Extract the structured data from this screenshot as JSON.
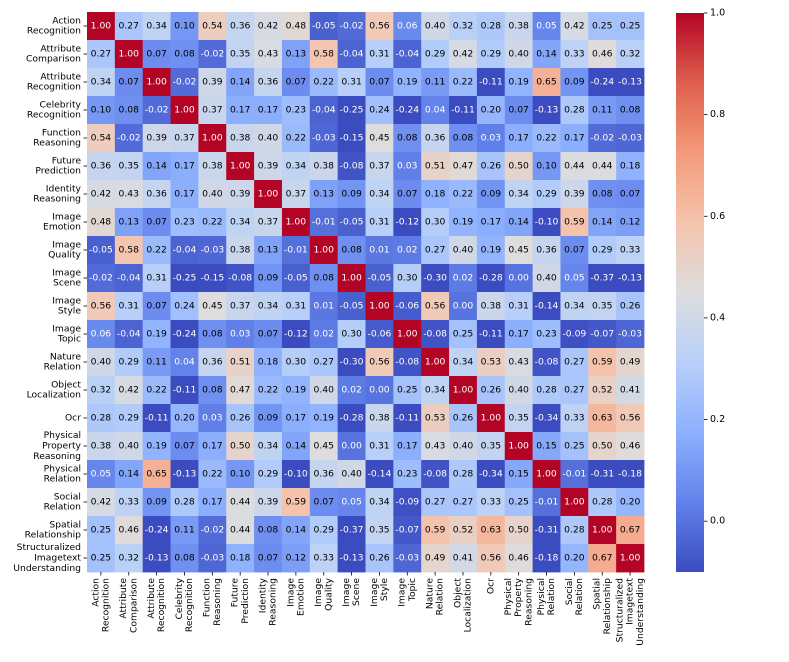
{
  "chart_data": {
    "type": "heatmap",
    "title": "",
    "xlabel": "",
    "ylabel": "",
    "row_labels": [
      [
        "Action",
        "Recognition"
      ],
      [
        "Attribute",
        "Comparison"
      ],
      [
        "Attribute",
        "Recognition"
      ],
      [
        "Celebrity",
        "Recognition"
      ],
      [
        "Function",
        "Reasoning"
      ],
      [
        "Future",
        "Prediction"
      ],
      [
        "Identity",
        "Reasoning"
      ],
      [
        "Image",
        "Emotion"
      ],
      [
        "Image",
        "Quality"
      ],
      [
        "Image",
        "Scene"
      ],
      [
        "Image",
        "Style"
      ],
      [
        "Image",
        "Topic"
      ],
      [
        "Nature",
        "Relation"
      ],
      [
        "Object",
        "Localization"
      ],
      [
        "Ocr"
      ],
      [
        "Physical",
        "Property",
        "Reasoning"
      ],
      [
        "Physical",
        "Relation"
      ],
      [
        "Social",
        "Relation"
      ],
      [
        "Spatial",
        "Relationship"
      ],
      [
        "Structuralized",
        "Imagetext",
        "Understanding"
      ]
    ],
    "values": [
      [
        1.0,
        0.27,
        0.34,
        0.1,
        0.54,
        0.36,
        0.42,
        0.48,
        -0.05,
        -0.02,
        0.56,
        0.06,
        0.4,
        0.32,
        0.28,
        0.38,
        0.05,
        0.42,
        0.25,
        0.25
      ],
      [
        0.27,
        1.0,
        0.07,
        0.08,
        -0.02,
        0.35,
        0.43,
        0.13,
        0.58,
        -0.04,
        0.31,
        -0.04,
        0.29,
        0.42,
        0.29,
        0.4,
        0.14,
        0.33,
        0.46,
        0.32
      ],
      [
        0.34,
        0.07,
        1.0,
        -0.02,
        0.39,
        0.14,
        0.36,
        0.07,
        0.22,
        0.31,
        0.07,
        0.19,
        0.11,
        0.22,
        -0.11,
        0.19,
        0.65,
        0.09,
        -0.24,
        -0.13
      ],
      [
        0.1,
        0.08,
        -0.02,
        1.0,
        0.37,
        0.17,
        0.17,
        0.23,
        -0.04,
        -0.25,
        0.24,
        -0.24,
        0.04,
        -0.11,
        0.2,
        0.07,
        -0.13,
        0.28,
        0.11,
        0.08
      ],
      [
        0.54,
        -0.02,
        0.39,
        0.37,
        1.0,
        0.38,
        0.4,
        0.22,
        -0.03,
        -0.15,
        0.45,
        0.08,
        0.36,
        0.08,
        0.03,
        0.17,
        0.22,
        0.17,
        -0.02,
        -0.03
      ],
      [
        0.36,
        0.35,
        0.14,
        0.17,
        0.38,
        1.0,
        0.39,
        0.34,
        0.38,
        -0.08,
        0.37,
        0.03,
        0.51,
        0.47,
        0.26,
        0.5,
        0.1,
        0.44,
        0.44,
        0.18
      ],
      [
        0.42,
        0.43,
        0.36,
        0.17,
        0.4,
        0.39,
        1.0,
        0.37,
        0.13,
        0.09,
        0.34,
        0.07,
        0.18,
        0.22,
        0.09,
        0.34,
        0.29,
        0.39,
        0.08,
        0.07
      ],
      [
        0.48,
        0.13,
        0.07,
        0.23,
        0.22,
        0.34,
        0.37,
        1.0,
        -0.01,
        -0.05,
        0.31,
        -0.12,
        0.3,
        0.19,
        0.17,
        0.14,
        -0.1,
        0.59,
        0.14,
        0.12
      ],
      [
        -0.05,
        0.58,
        0.22,
        -0.04,
        -0.03,
        0.38,
        0.13,
        -0.01,
        1.0,
        0.08,
        0.01,
        0.02,
        0.27,
        0.4,
        0.19,
        0.45,
        0.36,
        0.07,
        0.29,
        0.33
      ],
      [
        -0.02,
        -0.04,
        0.31,
        -0.25,
        -0.15,
        -0.08,
        0.09,
        -0.05,
        0.08,
        1.0,
        -0.05,
        0.3,
        -0.3,
        0.02,
        -0.28,
        0.0,
        0.4,
        0.05,
        -0.37,
        -0.13
      ],
      [
        0.56,
        0.31,
        0.07,
        0.24,
        0.45,
        0.37,
        0.34,
        0.31,
        0.01,
        -0.05,
        1.0,
        -0.06,
        0.56,
        0.0,
        0.38,
        0.31,
        -0.14,
        0.34,
        0.35,
        0.26
      ],
      [
        0.06,
        -0.04,
        0.19,
        -0.24,
        0.08,
        0.03,
        0.07,
        -0.12,
        0.02,
        0.3,
        -0.06,
        1.0,
        -0.08,
        0.25,
        -0.11,
        0.17,
        0.23,
        -0.09,
        -0.07,
        -0.03
      ],
      [
        0.4,
        0.29,
        0.11,
        0.04,
        0.36,
        0.51,
        0.18,
        0.3,
        0.27,
        -0.3,
        0.56,
        -0.08,
        1.0,
        0.34,
        0.53,
        0.43,
        -0.08,
        0.27,
        0.59,
        0.49
      ],
      [
        0.32,
        0.42,
        0.22,
        -0.11,
        0.08,
        0.47,
        0.22,
        0.19,
        0.4,
        0.02,
        0.0,
        0.25,
        0.34,
        1.0,
        0.26,
        0.4,
        0.28,
        0.27,
        0.52,
        0.41
      ],
      [
        0.28,
        0.29,
        -0.11,
        0.2,
        0.03,
        0.26,
        0.09,
        0.17,
        0.19,
        -0.28,
        0.38,
        -0.11,
        0.53,
        0.26,
        1.0,
        0.35,
        -0.34,
        0.33,
        0.63,
        0.56
      ],
      [
        0.38,
        0.4,
        0.19,
        0.07,
        0.17,
        0.5,
        0.34,
        0.14,
        0.45,
        0.0,
        0.31,
        0.17,
        0.43,
        0.4,
        0.35,
        1.0,
        0.15,
        0.25,
        0.5,
        0.46
      ],
      [
        0.05,
        0.14,
        0.65,
        -0.13,
        0.22,
        0.1,
        0.29,
        -0.1,
        0.36,
        0.4,
        -0.14,
        0.23,
        -0.08,
        0.28,
        -0.34,
        0.15,
        1.0,
        -0.01,
        -0.31,
        -0.18
      ],
      [
        0.42,
        0.33,
        0.09,
        0.28,
        0.17,
        0.44,
        0.39,
        0.59,
        0.07,
        0.05,
        0.34,
        -0.09,
        0.27,
        0.27,
        0.33,
        0.25,
        -0.01,
        1.0,
        0.28,
        0.2
      ],
      [
        0.25,
        0.46,
        -0.24,
        0.11,
        -0.02,
        0.44,
        0.08,
        0.14,
        0.29,
        -0.37,
        0.35,
        -0.07,
        0.59,
        0.52,
        0.63,
        0.5,
        -0.31,
        0.28,
        1.0,
        0.67
      ],
      [
        0.25,
        0.32,
        -0.13,
        0.08,
        -0.03,
        0.18,
        0.07,
        0.12,
        0.33,
        -0.13,
        0.26,
        -0.03,
        0.49,
        0.41,
        0.56,
        0.46,
        -0.18,
        0.2,
        0.67,
        1.0
      ]
    ],
    "colormap": "coolwarm",
    "vmin": -0.1,
    "vmax": 1.0,
    "colorbar_ticks": [
      0.0,
      0.2,
      0.4,
      0.6,
      0.8,
      1.0
    ],
    "colorbar_tick_labels": [
      "0.0",
      "0.2",
      "0.4",
      "0.6",
      "0.8",
      "1.0"
    ],
    "grid": false,
    "legend": "colorbar-right"
  }
}
